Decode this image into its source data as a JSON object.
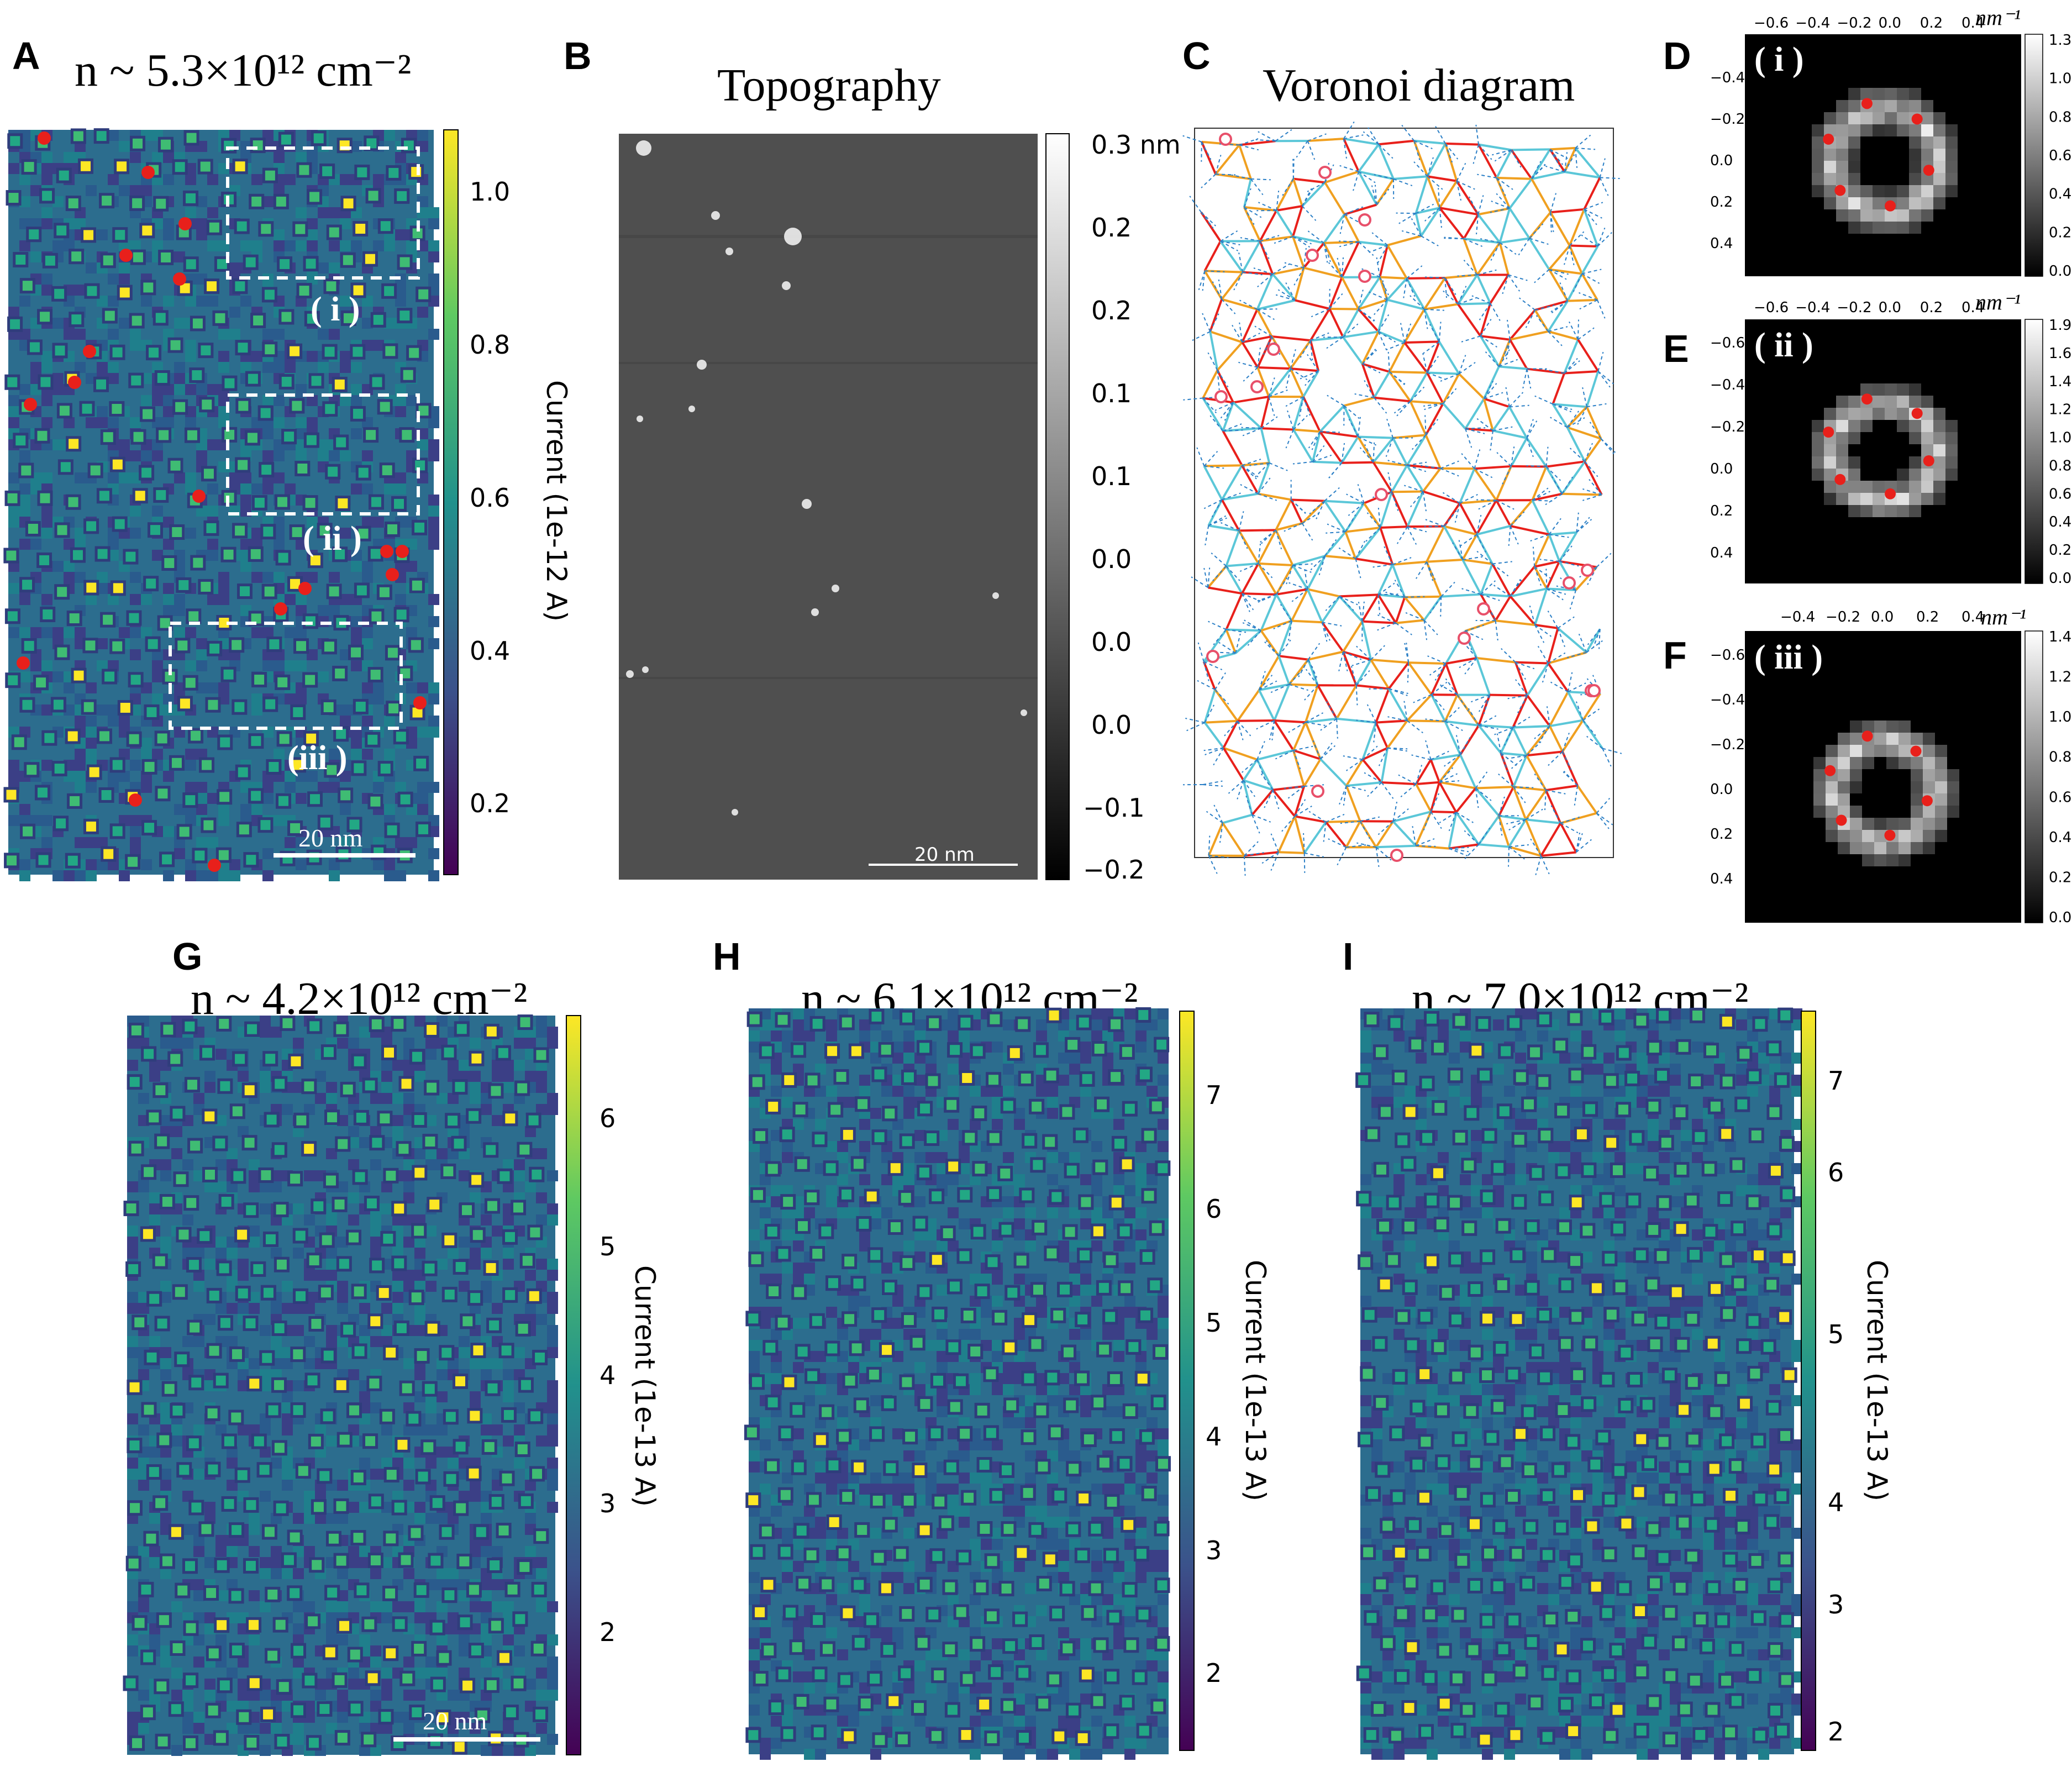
{
  "colors": {
    "viridis_dark": "#440154",
    "viridis_mid": "#21918c",
    "viridis_yellow": "#fde725",
    "marker_red": "#e8201b",
    "voronoi_blue": "#2b7fc6",
    "edge_red": "#e8201b",
    "edge_orange": "#f0a020",
    "edge_cyan": "#5bc7d8"
  },
  "panels": {
    "A": {
      "letter": "A",
      "title": "n ~ 5.3×10¹² cm⁻²",
      "colorbar_ticks": [
        "1.0",
        "0.8",
        "0.6",
        "0.4",
        "0.2"
      ],
      "colorbar_label": "Current (1e-12 A)",
      "regions": [
        "( i )",
        "( ii )",
        "(iii )"
      ],
      "scalebar": "20 nm"
    },
    "B": {
      "letter": "B",
      "title": "Topography",
      "colorbar_ticks": [
        "0.3 nm",
        "0.2",
        "0.2",
        "0.1",
        "0.1",
        "0.0",
        "0.0",
        "0.0",
        "−0.1",
        "−0.2"
      ],
      "scalebar": "20 nm"
    },
    "C": {
      "letter": "C",
      "title": "Voronoi diagram"
    },
    "D": {
      "letter": "D",
      "roman": "( i )",
      "unit": "nm⁻¹",
      "xticks": [
        "−0.6",
        "−0.4",
        "−0.2",
        "0.0",
        "0.2",
        "0.4"
      ],
      "yticks": [
        "−0.4",
        "−0.2",
        "0.0",
        "0.2",
        "0.4"
      ],
      "colorbar_ticks": [
        "1.3",
        "1.0",
        "0.8",
        "0.6",
        "0.4",
        "0.2",
        "0.0"
      ]
    },
    "E": {
      "letter": "E",
      "roman": "( ii )",
      "unit": "nm⁻¹",
      "xticks": [
        "−0.6",
        "−0.4",
        "−0.2",
        "0.0",
        "0.2",
        "0.4"
      ],
      "yticks": [
        "−0.6",
        "−0.4",
        "−0.2",
        "0.0",
        "0.2",
        "0.4"
      ],
      "colorbar_ticks": [
        "1.9",
        "1.6",
        "1.4",
        "1.2",
        "1.0",
        "0.8",
        "0.6",
        "0.4",
        "0.2",
        "0.0"
      ]
    },
    "F": {
      "letter": "F",
      "roman": "( iii )",
      "unit": "nm⁻¹",
      "xticks": [
        "−0.4",
        "−0.2",
        "0.0",
        "0.2",
        "0.4"
      ],
      "yticks": [
        "−0.6",
        "−0.4",
        "−0.2",
        "0.0",
        "0.2",
        "0.4"
      ],
      "colorbar_ticks": [
        "1.4",
        "1.2",
        "1.0",
        "0.8",
        "0.6",
        "0.4",
        "0.2",
        "0.0"
      ]
    },
    "G": {
      "letter": "G",
      "title": "n ~ 4.2×10¹² cm⁻²",
      "colorbar_ticks": [
        "6",
        "5",
        "4",
        "3",
        "2"
      ],
      "colorbar_label": "Current (1e-13 A)",
      "scalebar": "20 nm"
    },
    "H": {
      "letter": "H",
      "title": "n ~ 6.1×10¹² cm⁻²",
      "colorbar_ticks": [
        "7",
        "6",
        "5",
        "4",
        "3",
        "2"
      ],
      "colorbar_label": "Current (1e-13 A)"
    },
    "I": {
      "letter": "I",
      "title": "n ~ 7.0×10¹² cm⁻²",
      "colorbar_ticks": [
        "7",
        "6",
        "5",
        "4",
        "3",
        "2"
      ],
      "colorbar_label": "Current (1e-13 A)"
    }
  }
}
